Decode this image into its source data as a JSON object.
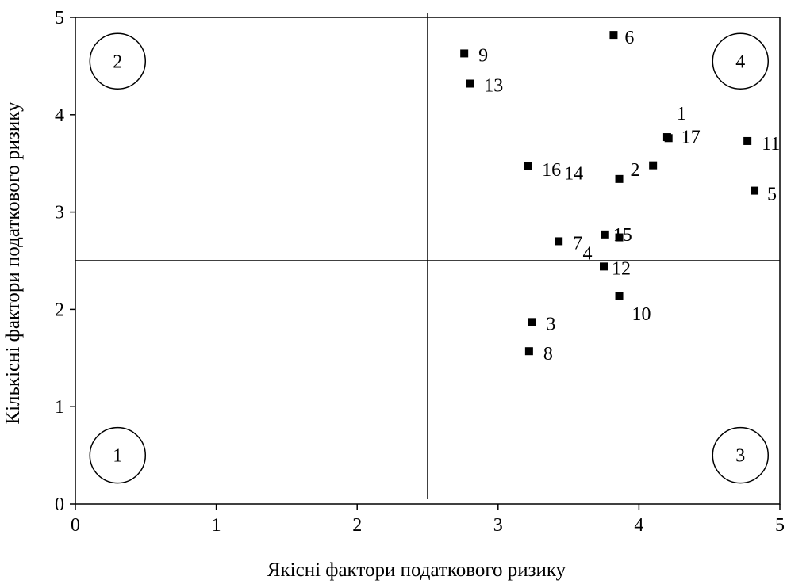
{
  "chart_data": {
    "type": "scatter",
    "title": "",
    "xlabel": "Якісні фактори податкового ризику",
    "ylabel": "Кількісні фактори податкового ризику",
    "xlim": [
      0,
      5
    ],
    "ylim": [
      0,
      5
    ],
    "x_ticks": [
      "0",
      "1",
      "2",
      "3",
      "4",
      "5"
    ],
    "y_ticks": [
      "0",
      "1",
      "2",
      "3",
      "4",
      "5"
    ],
    "grid": false,
    "legend": "none",
    "marker": "square",
    "marker_color": "#000000",
    "divider_lines": {
      "x": 2.5,
      "y": 2.5
    },
    "quadrants": [
      {
        "label": "1",
        "x": 0.3,
        "y": 0.5
      },
      {
        "label": "2",
        "x": 0.3,
        "y": 4.55
      },
      {
        "label": "3",
        "x": 4.72,
        "y": 0.5
      },
      {
        "label": "4",
        "x": 4.72,
        "y": 4.55
      }
    ],
    "points": [
      {
        "label": "1",
        "x": 4.2,
        "y": 3.77
      },
      {
        "label": "2",
        "x": 3.86,
        "y": 3.34
      },
      {
        "label": "3",
        "x": 3.24,
        "y": 1.87
      },
      {
        "label": "4",
        "x": 3.86,
        "y": 2.74
      },
      {
        "label": "5",
        "x": 4.82,
        "y": 3.22
      },
      {
        "label": "6",
        "x": 3.82,
        "y": 4.82
      },
      {
        "label": "7",
        "x": 3.43,
        "y": 2.7
      },
      {
        "label": "8",
        "x": 3.22,
        "y": 1.57
      },
      {
        "label": "9",
        "x": 2.76,
        "y": 4.63
      },
      {
        "label": "10",
        "x": 3.86,
        "y": 2.14
      },
      {
        "label": "11",
        "x": 4.77,
        "y": 3.73
      },
      {
        "label": "12",
        "x": 3.75,
        "y": 2.44
      },
      {
        "label": "13",
        "x": 2.8,
        "y": 4.32
      },
      {
        "label": "14",
        "x": 4.1,
        "y": 3.48
      },
      {
        "label": "15",
        "x": 3.76,
        "y": 2.77
      },
      {
        "label": "16",
        "x": 3.21,
        "y": 3.47
      },
      {
        "label": "17",
        "x": 4.21,
        "y": 3.76
      }
    ]
  }
}
